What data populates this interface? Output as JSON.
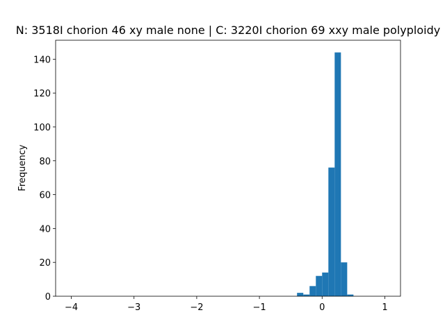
{
  "chart_data": {
    "type": "histogram",
    "title": "N: 3518I chorion 46 xy male none | C: 3220I chorion 69 xxy male polyploidy",
    "y_label": "Frequency",
    "color": "#1f77b4",
    "bins": [
      -4.0,
      -3.9,
      -3.8,
      -3.7,
      -3.6,
      -3.5,
      -3.4,
      -3.3,
      -3.2,
      -3.1,
      -3.0,
      -2.9,
      -2.8,
      -2.7,
      -2.6,
      -2.5,
      -2.4,
      -2.3,
      -2.2,
      -2.1,
      -2.0,
      -1.9,
      -1.8,
      -1.7,
      -1.6,
      -1.5,
      -1.4,
      -1.3,
      -1.2,
      -1.1,
      -1.0,
      -0.9,
      -0.8,
      -0.7,
      -0.6,
      -0.5,
      -0.4,
      -0.3,
      -0.2,
      -0.1,
      0.0,
      0.1,
      0.2,
      0.3,
      0.4,
      0.5,
      0.6,
      0.7,
      0.8,
      0.9,
      1.0
    ],
    "values": [
      0,
      0,
      0,
      0,
      0,
      0,
      0,
      0,
      0,
      0,
      0,
      0,
      0,
      0,
      0,
      0,
      0,
      0,
      0,
      0,
      0,
      0,
      0,
      0,
      0,
      0,
      0,
      0,
      0,
      0,
      0,
      0,
      0,
      0,
      0,
      0,
      2,
      1,
      6,
      12,
      14,
      76,
      144,
      20,
      1,
      0,
      0,
      0,
      0,
      0
    ],
    "xlim": [
      -4.25,
      1.25
    ],
    "xticks": [
      {
        "value": -4,
        "label": "−4"
      },
      {
        "value": -3,
        "label": "−3"
      },
      {
        "value": -2,
        "label": "−2"
      },
      {
        "value": -1,
        "label": "−1"
      },
      0,
      1
    ],
    "ylim": [
      0,
      151.2
    ],
    "yticks": [
      0,
      20,
      40,
      60,
      80,
      100,
      120,
      140
    ]
  }
}
